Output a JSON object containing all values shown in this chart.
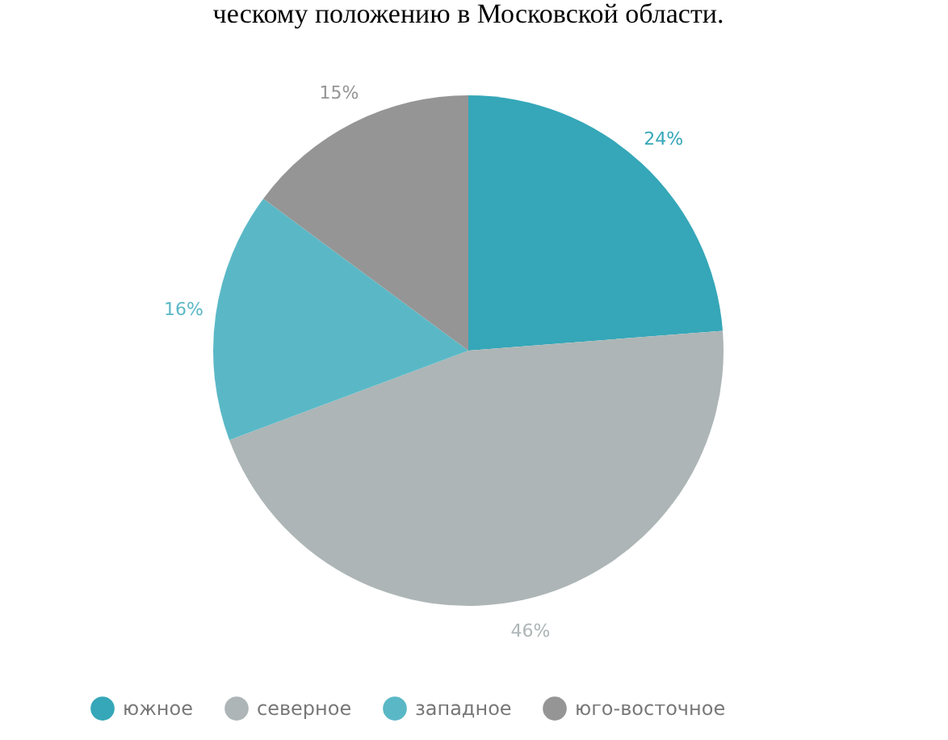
{
  "chart_data": {
    "type": "pie",
    "title": "ческому положению в Московской области.",
    "categories": [
      "южное",
      "северное",
      "западное",
      "юго-восточное"
    ],
    "values": [
      24,
      46,
      16,
      15
    ],
    "colors": [
      "#35a7b8",
      "#adb5b6",
      "#5ab8c6",
      "#959595"
    ],
    "value_labels": [
      "24%",
      "46%",
      "16%",
      "15%"
    ],
    "legend": "bottom"
  }
}
